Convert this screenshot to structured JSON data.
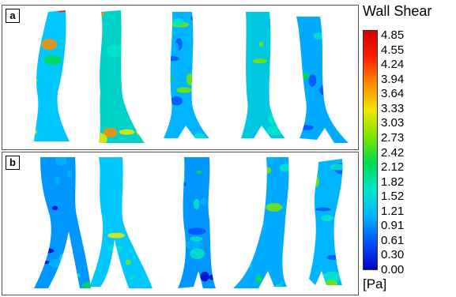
{
  "panels": [
    {
      "label": "a",
      "vessels": 5
    },
    {
      "label": "b",
      "vessels": 5
    }
  ],
  "legend": {
    "title": "Wall Shear",
    "ticks": [
      "4.85",
      "4.55",
      "4.24",
      "3.94",
      "3.64",
      "3.33",
      "3.03",
      "2.73",
      "2.42",
      "2.12",
      "1.82",
      "1.52",
      "1.21",
      "0.91",
      "0.61",
      "0.30",
      "0.00"
    ],
    "unit": "[Pa]",
    "colormap": [
      "#0000c8",
      "#0050ff",
      "#00b4ff",
      "#00e6c8",
      "#00dc50",
      "#78e600",
      "#f0e600",
      "#ff8c00",
      "#ff1e00",
      "#d20000"
    ]
  }
}
